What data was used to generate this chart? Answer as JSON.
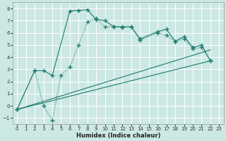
{
  "xlabel": "Humidex (Indice chaleur)",
  "xlim": [
    -0.5,
    23.5
  ],
  "ylim": [
    -1.5,
    8.5
  ],
  "xticks": [
    0,
    1,
    2,
    3,
    4,
    5,
    6,
    7,
    8,
    9,
    10,
    11,
    12,
    13,
    14,
    15,
    16,
    17,
    18,
    19,
    20,
    21,
    22,
    23
  ],
  "yticks": [
    -1,
    0,
    1,
    2,
    3,
    4,
    5,
    6,
    7,
    8
  ],
  "background_color": "#cce8e4",
  "grid_color": "#ffffff",
  "line_color": "#1a7a6e",
  "line1_x": [
    0,
    2,
    3,
    4,
    6,
    7,
    8,
    9,
    10,
    11,
    12,
    13,
    14,
    16,
    17,
    18,
    19,
    20,
    21,
    22
  ],
  "line1_y": [
    -0.3,
    2.9,
    2.9,
    2.5,
    7.8,
    7.85,
    7.9,
    7.1,
    7.0,
    6.5,
    6.5,
    6.5,
    5.5,
    6.1,
    6.3,
    5.3,
    5.7,
    4.8,
    5.0,
    3.7
  ],
  "line2_x": [
    0,
    2,
    3,
    4,
    5,
    6,
    7,
    8,
    9,
    10,
    11,
    12,
    13,
    14,
    16,
    17,
    18,
    19,
    20,
    21,
    22
  ],
  "line2_y": [
    -0.3,
    2.9,
    0.0,
    -1.2,
    2.5,
    3.2,
    5.0,
    6.9,
    7.2,
    6.5,
    6.5,
    6.45,
    6.5,
    5.4,
    6.0,
    5.8,
    5.3,
    5.5,
    4.7,
    4.8,
    3.7
  ],
  "line3_x": [
    0,
    22
  ],
  "line3_y": [
    -0.3,
    3.7
  ],
  "line4_x": [
    0,
    22
  ],
  "line4_y": [
    -0.3,
    4.6
  ]
}
